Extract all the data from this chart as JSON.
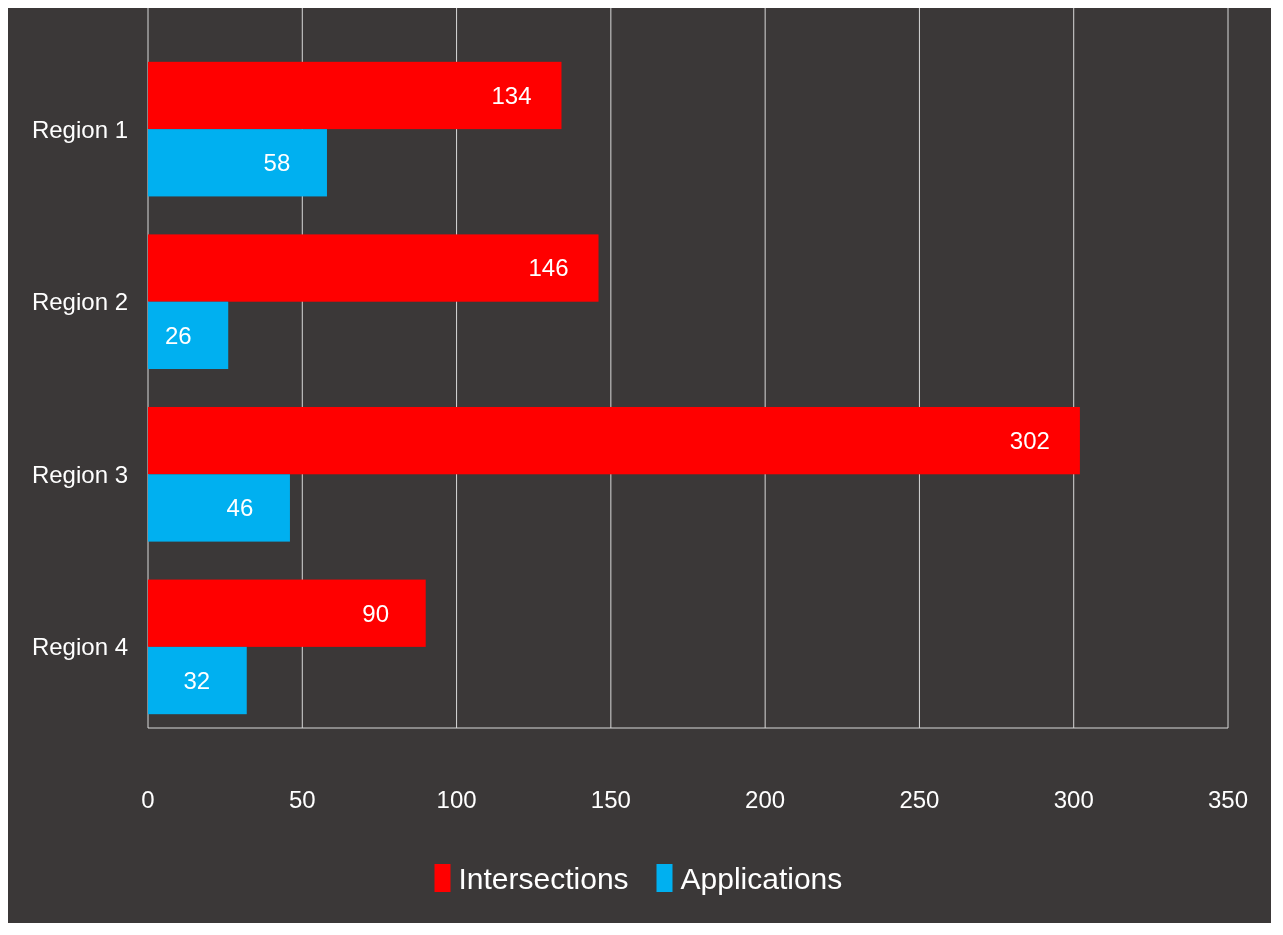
{
  "chart_data": {
    "type": "bar",
    "orientation": "horizontal",
    "categories": [
      "Region 1",
      "Region 2",
      "Region 3",
      "Region 4"
    ],
    "series": [
      {
        "name": "Intersections",
        "color": "#ff0000",
        "values": [
          134,
          146,
          302,
          90
        ]
      },
      {
        "name": "Applications",
        "color": "#00b0f0",
        "values": [
          58,
          26,
          46,
          32
        ]
      }
    ],
    "xlim": [
      0,
      350
    ],
    "xticks": [
      0,
      50,
      100,
      150,
      200,
      250,
      300,
      350
    ],
    "grid": "x",
    "legend": "bottom",
    "data_labels": true
  }
}
